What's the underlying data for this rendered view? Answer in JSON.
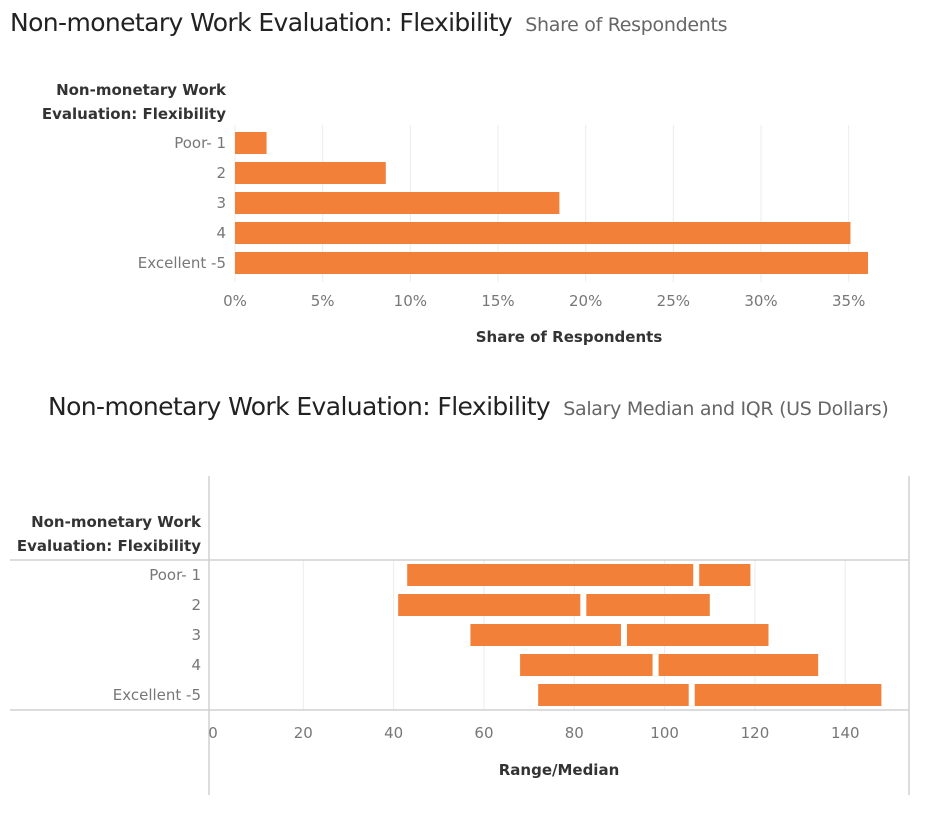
{
  "chart_data": [
    {
      "type": "bar",
      "title": "Non-monetary Work Evaluation: Flexibility",
      "subtitle": "Share of Respondents",
      "dimension_header": [
        "Non-monetary Work",
        "Evaluation: Flexibility"
      ],
      "categories": [
        "Poor- 1",
        "2",
        "3",
        "4",
        "Excellent -5"
      ],
      "values": [
        1.8,
        8.6,
        18.5,
        35.1,
        36.1
      ],
      "xlabel": "Share of Respondents",
      "ylabel": "",
      "xlim": [
        0,
        36.5
      ],
      "ticks": [
        0,
        5,
        10,
        15,
        20,
        25,
        30,
        35
      ],
      "tick_labels": [
        "0%",
        "5%",
        "10%",
        "15%",
        "20%",
        "25%",
        "30%",
        "35%"
      ],
      "orientation": "horizontal",
      "grid": true,
      "color": "#f28038"
    },
    {
      "type": "bar",
      "title": "Non-monetary Work Evaluation: Flexibility",
      "subtitle": "Salary Median and IQR (US Dollars)",
      "dimension_header": [
        "Non-monetary Work",
        "Evaluation: Flexibility"
      ],
      "categories": [
        "Poor- 1",
        "2",
        "3",
        "4",
        "Excellent -5"
      ],
      "series": [
        {
          "q1": 43,
          "median": 107,
          "q3": 119
        },
        {
          "q1": 41,
          "median": 82,
          "q3": 110
        },
        {
          "q1": 57,
          "median": 91,
          "q3": 123
        },
        {
          "q1": 68,
          "median": 98,
          "q3": 134
        },
        {
          "q1": 72,
          "median": 106,
          "q3": 148
        }
      ],
      "xlabel": "Range/Median",
      "ylabel": "",
      "xlim": [
        0,
        155
      ],
      "ticks": [
        0,
        20,
        40,
        60,
        80,
        100,
        120,
        140
      ],
      "tick_labels": [
        "0",
        "20",
        "40",
        "60",
        "80",
        "100",
        "120",
        "140"
      ],
      "orientation": "horizontal",
      "grid": true,
      "color": "#f28038"
    }
  ]
}
